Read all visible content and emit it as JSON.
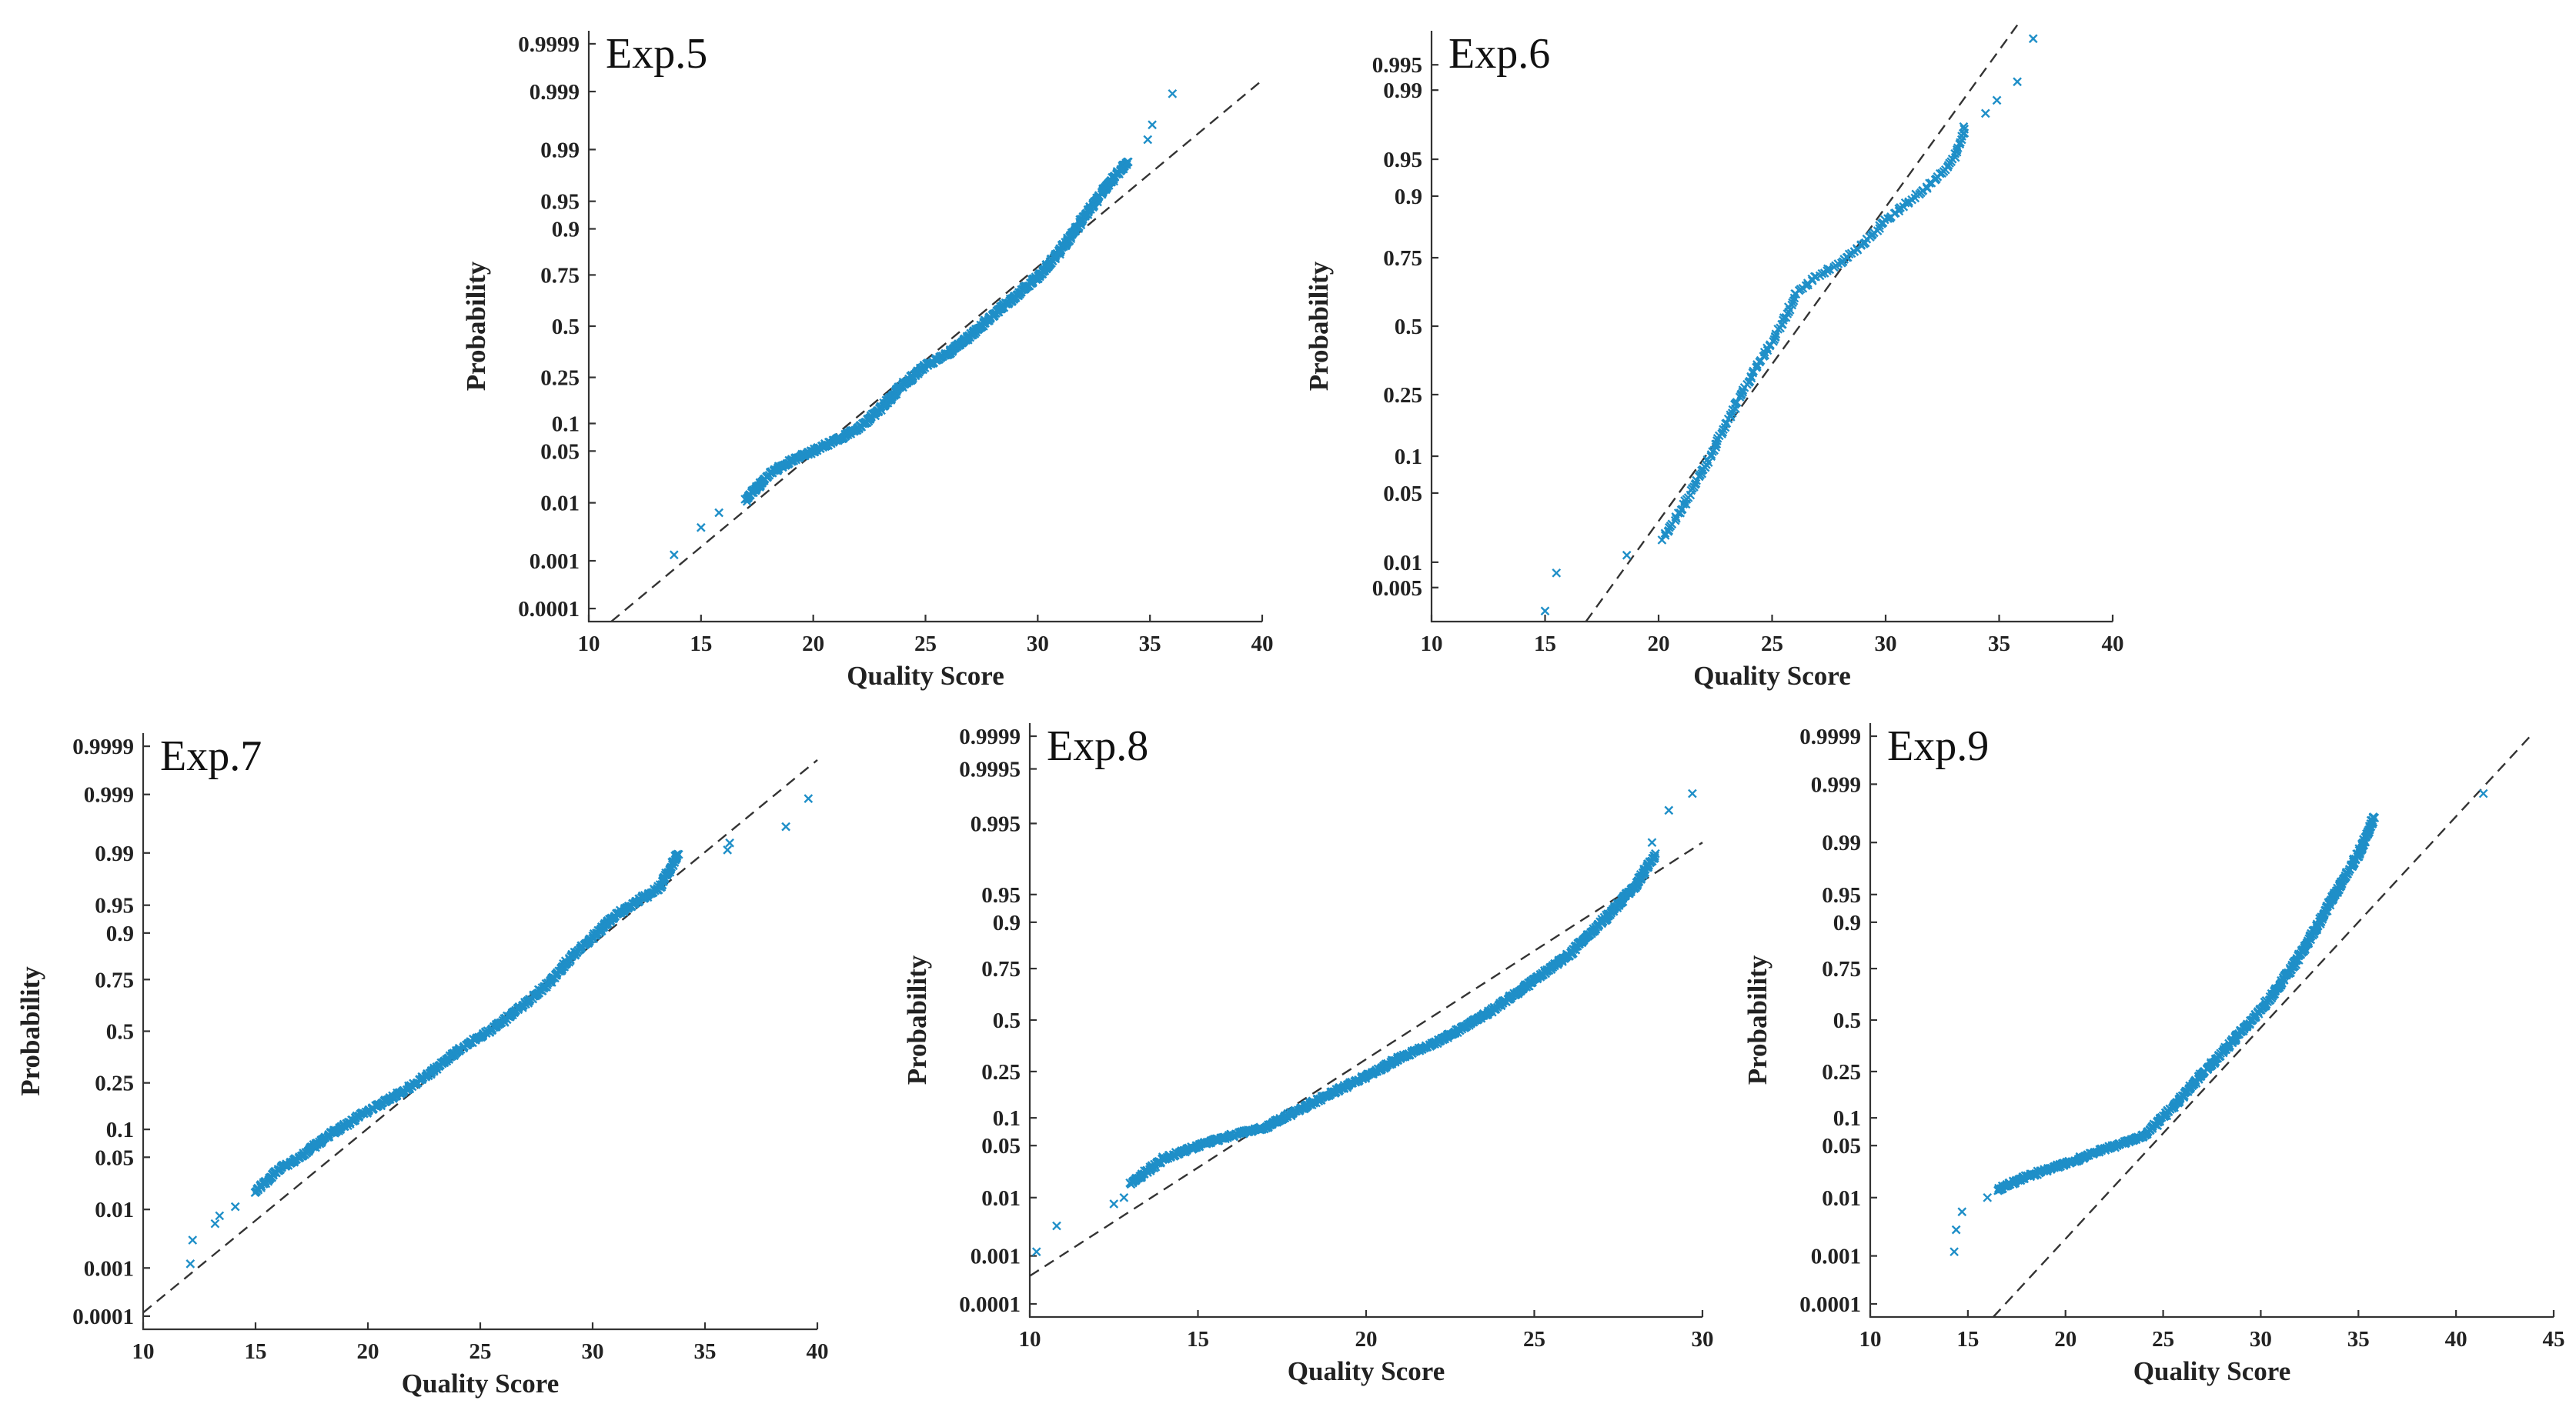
{
  "chart_data": [
    {
      "type": "scatter",
      "title": "Exp.5",
      "xlabel": "Quality Score",
      "ylabel": "Probability",
      "xlim": [
        10,
        40
      ],
      "xticks": [
        10,
        15,
        20,
        25,
        30,
        35,
        40
      ],
      "yticks": [
        0.0001,
        0.001,
        0.01,
        0.05,
        0.1,
        0.25,
        0.5,
        0.75,
        0.9,
        0.95,
        0.99,
        0.999,
        0.9999
      ],
      "yticklabels": [
        "0.0001",
        "0.001",
        "0.01",
        "0.05",
        "0.1",
        "0.25",
        "0.5",
        "0.75",
        "0.9",
        "0.95",
        "0.99",
        "0.999",
        "0.9999"
      ],
      "plim": [
        5e-05,
        0.99995
      ],
      "n": 700,
      "reference_line": {
        "points": [
          [
            11.0,
            5e-05
          ],
          [
            40.0,
            0.9994
          ]
        ]
      },
      "outliers": [
        [
          13.8,
          0.0013
        ],
        [
          15.0,
          0.004
        ],
        [
          15.8,
          0.007
        ],
        [
          34.9,
          0.993
        ],
        [
          35.1,
          0.996
        ],
        [
          36.0,
          0.9989
        ]
      ],
      "curve": [
        [
          17,
          0.011
        ],
        [
          18,
          0.025
        ],
        [
          19,
          0.038
        ],
        [
          20,
          0.05
        ],
        [
          21,
          0.066
        ],
        [
          22,
          0.088
        ],
        [
          23,
          0.14
        ],
        [
          24,
          0.22
        ],
        [
          25,
          0.3
        ],
        [
          26,
          0.36
        ],
        [
          27,
          0.45
        ],
        [
          28,
          0.56
        ],
        [
          29,
          0.65
        ],
        [
          30,
          0.74
        ],
        [
          31,
          0.84
        ],
        [
          32,
          0.92
        ],
        [
          33,
          0.965
        ],
        [
          34,
          0.985
        ]
      ]
    },
    {
      "type": "scatter",
      "title": "Exp.6",
      "xlabel": "Quality Score",
      "ylabel": "Probability",
      "xlim": [
        10,
        40
      ],
      "xticks": [
        10,
        15,
        20,
        25,
        30,
        35,
        40
      ],
      "yticks": [
        0.005,
        0.01,
        0.05,
        0.1,
        0.25,
        0.5,
        0.75,
        0.9,
        0.95,
        0.99,
        0.995
      ],
      "yticklabels": [
        "0.005",
        "0.01",
        "0.05",
        "0.1",
        "0.25",
        "0.5",
        "0.75",
        "0.9",
        "0.95",
        "0.99",
        "0.995"
      ],
      "plim": [
        0.0018,
        0.9982
      ],
      "n": 200,
      "reference_line": {
        "points": [
          [
            16.8,
            0.0018
          ],
          [
            35.8,
            0.9985
          ]
        ]
      },
      "outliers": [
        [
          15.0,
          0.0025
        ],
        [
          15.5,
          0.0075
        ],
        [
          18.6,
          0.012
        ],
        [
          34.4,
          0.982
        ],
        [
          34.9,
          0.987
        ],
        [
          35.8,
          0.992
        ],
        [
          36.5,
          0.9977
        ]
      ],
      "curve": [
        [
          20.2,
          0.018
        ],
        [
          21,
          0.035
        ],
        [
          22,
          0.08
        ],
        [
          23,
          0.17
        ],
        [
          24,
          0.3
        ],
        [
          25,
          0.44
        ],
        [
          25.5,
          0.52
        ],
        [
          26,
          0.62
        ],
        [
          27,
          0.69
        ],
        [
          28,
          0.73
        ],
        [
          29,
          0.79
        ],
        [
          30,
          0.85
        ],
        [
          31,
          0.89
        ],
        [
          32,
          0.92
        ],
        [
          33,
          0.95
        ],
        [
          33.5,
          0.975
        ]
      ]
    },
    {
      "type": "scatter",
      "title": "Exp.7",
      "xlabel": "Quality Score",
      "ylabel": "Probability",
      "xlim": [
        10,
        40
      ],
      "xticks": [
        10,
        15,
        20,
        25,
        30,
        35,
        40
      ],
      "yticks": [
        0.0001,
        0.001,
        0.01,
        0.05,
        0.1,
        0.25,
        0.5,
        0.75,
        0.9,
        0.95,
        0.99,
        0.999,
        0.9999
      ],
      "yticklabels": [
        "0.0001",
        "0.001",
        "0.01",
        "0.05",
        "0.1",
        "0.25",
        "0.5",
        "0.75",
        "0.9",
        "0.95",
        "0.99",
        "0.999",
        "0.9999"
      ],
      "plim": [
        5e-05,
        0.99995
      ],
      "n": 600,
      "reference_line": {
        "points": [
          [
            10.0,
            0.00012
          ],
          [
            40.0,
            0.9998
          ]
        ]
      },
      "outliers": [
        [
          12.1,
          0.0012
        ],
        [
          12.2,
          0.0032
        ],
        [
          13.2,
          0.006
        ],
        [
          13.4,
          0.008
        ],
        [
          14.1,
          0.011
        ],
        [
          36.0,
          0.991
        ],
        [
          36.1,
          0.993
        ],
        [
          38.6,
          0.9962
        ],
        [
          39.6,
          0.9988
        ]
      ],
      "curve": [
        [
          15,
          0.018
        ],
        [
          16,
          0.035
        ],
        [
          17,
          0.05
        ],
        [
          18,
          0.08
        ],
        [
          19,
          0.11
        ],
        [
          20,
          0.15
        ],
        [
          21,
          0.19
        ],
        [
          22,
          0.24
        ],
        [
          23,
          0.31
        ],
        [
          24,
          0.4
        ],
        [
          25,
          0.47
        ],
        [
          26,
          0.55
        ],
        [
          27,
          0.64
        ],
        [
          28,
          0.73
        ],
        [
          29,
          0.83
        ],
        [
          30,
          0.89
        ],
        [
          31,
          0.935
        ],
        [
          32,
          0.955
        ],
        [
          33,
          0.97
        ],
        [
          33.8,
          0.99
        ]
      ]
    },
    {
      "type": "scatter",
      "title": "Exp.8",
      "xlabel": "Quality Score",
      "ylabel": "Probability",
      "xlim": [
        10,
        30
      ],
      "xticks": [
        10,
        15,
        20,
        25,
        30
      ],
      "yticks": [
        0.0001,
        0.001,
        0.01,
        0.05,
        0.1,
        0.25,
        0.5,
        0.75,
        0.9,
        0.95,
        0.995,
        0.9995,
        0.9999
      ],
      "yticklabels": [
        "0.0001",
        "0.001",
        "0.01",
        "0.05",
        "0.1",
        "0.25",
        "0.5",
        "0.75",
        "0.9",
        "0.95",
        "0.995",
        "0.9995",
        "0.9999"
      ],
      "plim": [
        5e-05,
        0.99995
      ],
      "n": 800,
      "reference_line": {
        "points": [
          [
            10.0,
            0.0004
          ],
          [
            30.0,
            0.99
          ]
        ]
      },
      "outliers": [
        [
          10.2,
          0.0012
        ],
        [
          10.8,
          0.0035
        ],
        [
          12.5,
          0.008
        ],
        [
          12.8,
          0.01
        ],
        [
          28.5,
          0.99
        ],
        [
          29.0,
          0.997
        ],
        [
          29.7,
          0.9985
        ]
      ],
      "curve": [
        [
          13,
          0.016
        ],
        [
          14,
          0.035
        ],
        [
          15,
          0.05
        ],
        [
          16,
          0.065
        ],
        [
          17,
          0.08
        ],
        [
          18,
          0.12
        ],
        [
          19,
          0.17
        ],
        [
          20,
          0.23
        ],
        [
          21,
          0.31
        ],
        [
          22,
          0.38
        ],
        [
          23,
          0.47
        ],
        [
          24,
          0.58
        ],
        [
          25,
          0.7
        ],
        [
          26,
          0.8
        ],
        [
          27,
          0.9
        ],
        [
          28,
          0.96
        ],
        [
          28.6,
          0.985
        ]
      ]
    },
    {
      "type": "scatter",
      "title": "Exp.9",
      "xlabel": "Quality Score",
      "ylabel": "Probability",
      "xlim": [
        10,
        45
      ],
      "xticks": [
        10,
        15,
        20,
        25,
        30,
        35,
        40,
        45
      ],
      "yticks": [
        0.0001,
        0.001,
        0.01,
        0.05,
        0.1,
        0.25,
        0.5,
        0.75,
        0.9,
        0.95,
        0.99,
        0.999,
        0.9999
      ],
      "yticklabels": [
        "0.0001",
        "0.001",
        "0.01",
        "0.05",
        "0.1",
        "0.25",
        "0.5",
        "0.75",
        "0.9",
        "0.95",
        "0.99",
        "0.999",
        "0.9999"
      ],
      "plim": [
        5e-05,
        0.99995
      ],
      "n": 600,
      "reference_line": {
        "points": [
          [
            16.3,
            5e-05
          ],
          [
            43.8,
            0.9999
          ]
        ]
      },
      "outliers": [
        [
          14.3,
          0.0012
        ],
        [
          14.4,
          0.003
        ],
        [
          14.7,
          0.006
        ],
        [
          16.0,
          0.01
        ],
        [
          41.4,
          0.9985
        ]
      ],
      "curve": [
        [
          16.5,
          0.013
        ],
        [
          18,
          0.02
        ],
        [
          20,
          0.03
        ],
        [
          22,
          0.045
        ],
        [
          24,
          0.065
        ],
        [
          25,
          0.1
        ],
        [
          26,
          0.16
        ],
        [
          27,
          0.24
        ],
        [
          28,
          0.33
        ],
        [
          29,
          0.44
        ],
        [
          30,
          0.55
        ],
        [
          31,
          0.68
        ],
        [
          32,
          0.8
        ],
        [
          33,
          0.9
        ],
        [
          34,
          0.96
        ],
        [
          35,
          0.985
        ],
        [
          35.8,
          0.996
        ]
      ]
    }
  ]
}
